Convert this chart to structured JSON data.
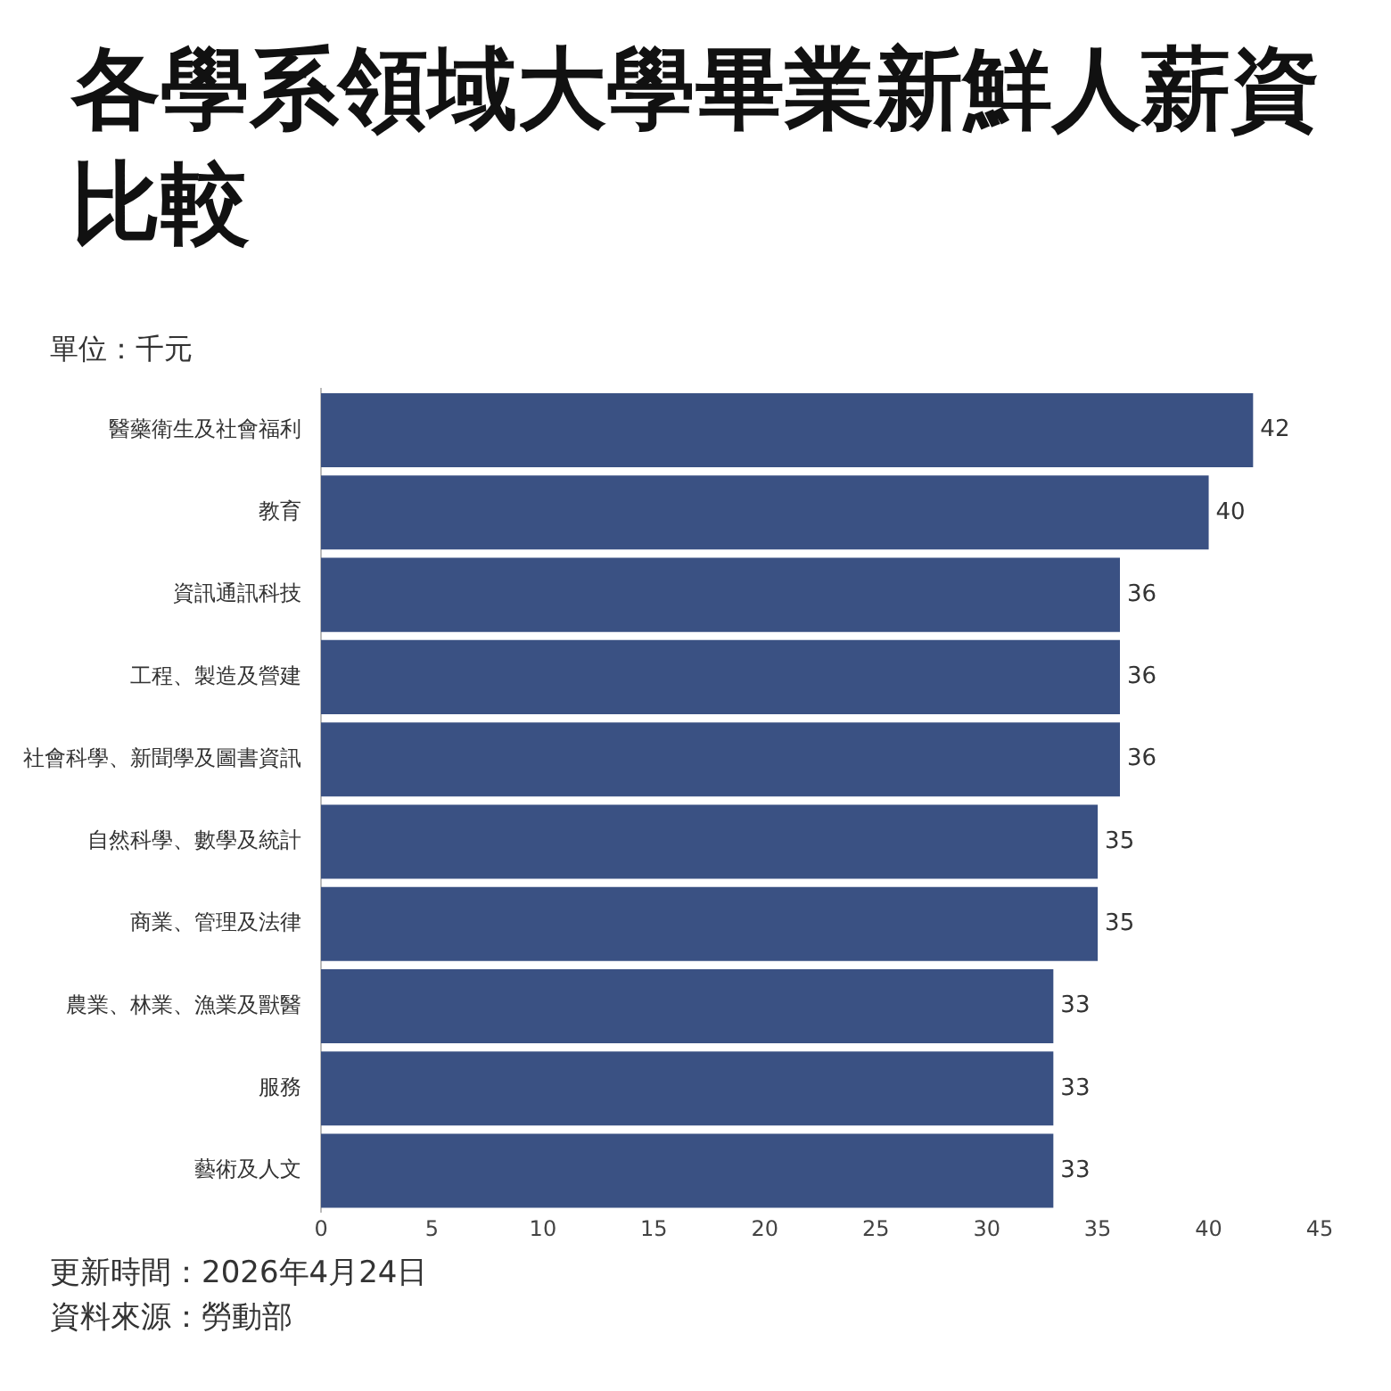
{
  "chart_data": {
    "type": "bar",
    "orientation": "horizontal",
    "title": "各學系領域大學畢業新鮮人薪資比較",
    "subtitle": "單位：千元",
    "categories": [
      "醫藥衛生及社會福利",
      "教育",
      "資訊通訊科技",
      "工程、製造及營建",
      "社會科學、新聞學及圖書資訊",
      "自然科學、數學及統計",
      "商業、管理及法律",
      "農業、林業、漁業及獸醫",
      "服務",
      "藝術及人文"
    ],
    "values": [
      42,
      40,
      36,
      36,
      36,
      35,
      35,
      33,
      33,
      33
    ],
    "color": "#3a5183",
    "xlim": [
      0,
      45
    ],
    "xticks": [
      0,
      5,
      10,
      15,
      20,
      25,
      30,
      35,
      40,
      45
    ],
    "data_labels": true,
    "grid": false,
    "legend": false,
    "annotations": [
      "更新時間：2026年4月24日",
      "資料來源：勞動部"
    ]
  }
}
